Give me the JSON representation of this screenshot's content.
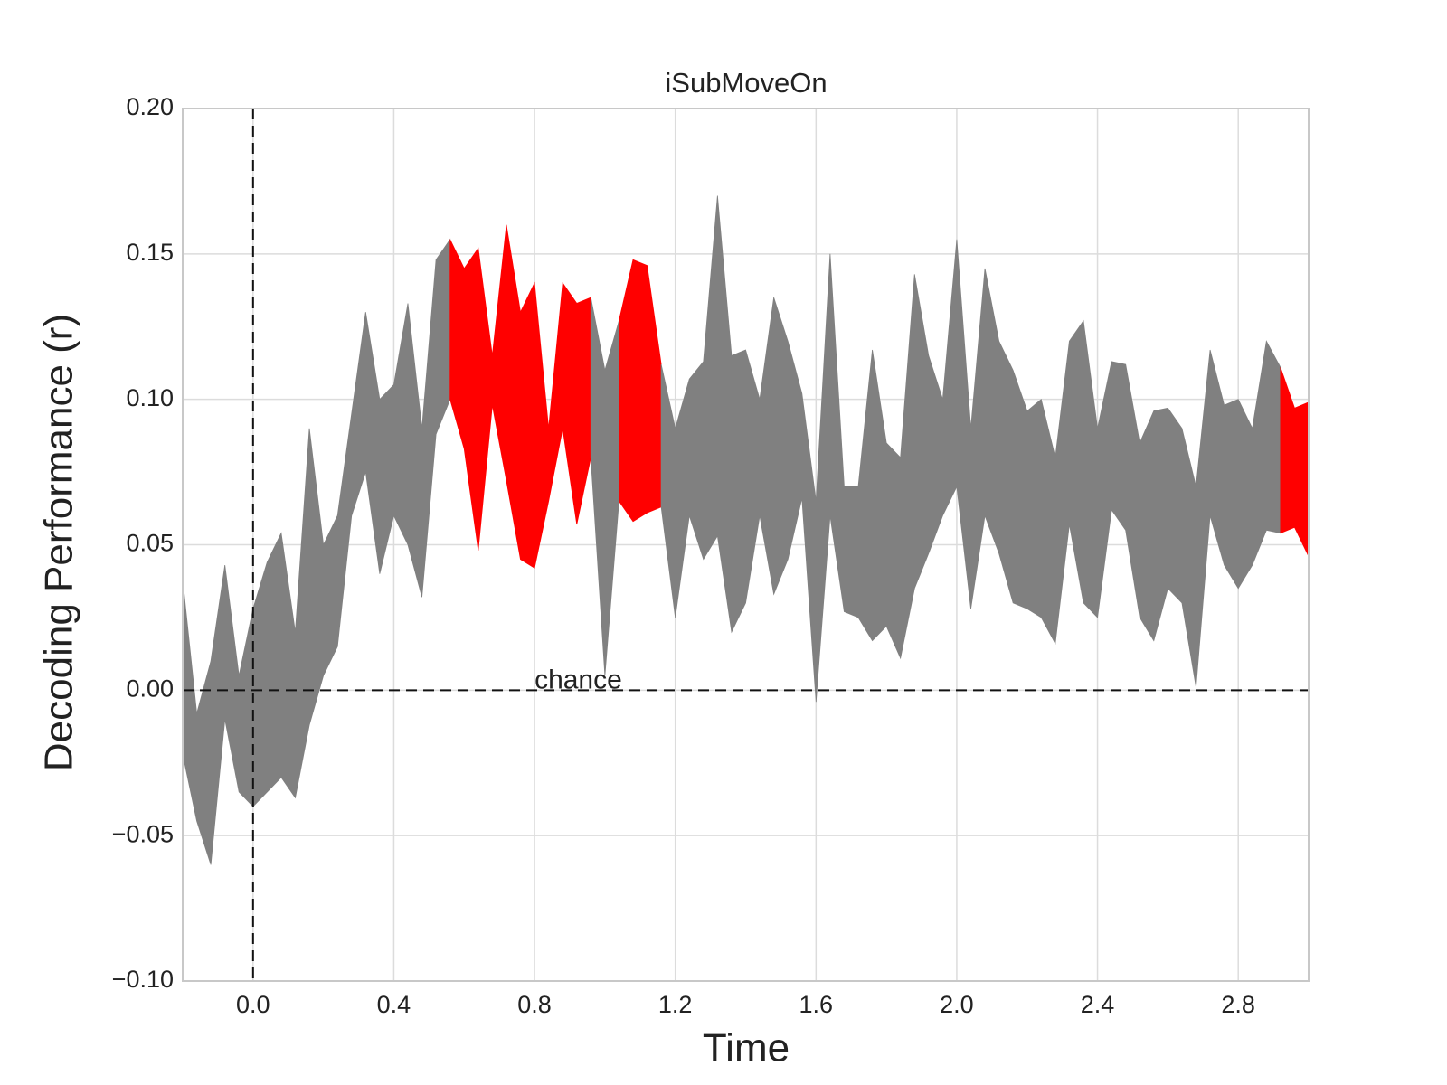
{
  "chart_data": {
    "type": "band",
    "title": "iSubMoveOn",
    "xlabel": "Time",
    "ylabel": "Decoding Performance (r)",
    "x": [
      -0.2,
      -0.16,
      -0.12,
      -0.08,
      -0.04,
      0.0,
      0.04,
      0.08,
      0.12,
      0.16,
      0.2,
      0.24,
      0.28,
      0.32,
      0.36,
      0.4,
      0.44,
      0.48,
      0.52,
      0.56,
      0.6,
      0.64,
      0.68,
      0.72,
      0.76,
      0.8,
      0.84,
      0.88,
      0.92,
      0.96,
      1.0,
      1.04,
      1.08,
      1.12,
      1.16,
      1.2,
      1.24,
      1.28,
      1.32,
      1.36,
      1.4,
      1.44,
      1.48,
      1.52,
      1.56,
      1.6,
      1.64,
      1.68,
      1.72,
      1.76,
      1.8,
      1.84,
      1.88,
      1.92,
      1.96,
      2.0,
      2.04,
      2.08,
      2.12,
      2.16,
      2.2,
      2.24,
      2.28,
      2.32,
      2.36,
      2.4,
      2.44,
      2.48,
      2.52,
      2.56,
      2.6,
      2.64,
      2.68,
      2.72,
      2.76,
      2.8,
      2.84,
      2.88,
      2.92,
      2.96,
      3.0
    ],
    "upper": [
      0.038,
      -0.008,
      0.01,
      0.043,
      0.005,
      0.028,
      0.044,
      0.054,
      0.02,
      0.09,
      0.05,
      0.06,
      0.095,
      0.13,
      0.1,
      0.105,
      0.133,
      0.09,
      0.148,
      0.155,
      0.145,
      0.152,
      0.115,
      0.16,
      0.13,
      0.14,
      0.09,
      0.14,
      0.133,
      0.135,
      0.11,
      0.127,
      0.148,
      0.146,
      0.112,
      0.09,
      0.107,
      0.113,
      0.17,
      0.115,
      0.117,
      0.1,
      0.135,
      0.12,
      0.102,
      0.065,
      0.15,
      0.07,
      0.07,
      0.117,
      0.085,
      0.08,
      0.143,
      0.115,
      0.1,
      0.155,
      0.09,
      0.145,
      0.12,
      0.11,
      0.096,
      0.1,
      0.08,
      0.12,
      0.127,
      0.09,
      0.113,
      0.112,
      0.085,
      0.096,
      0.097,
      0.09,
      0.07,
      0.117,
      0.098,
      0.1,
      0.09,
      0.12,
      0.111,
      0.097,
      0.099
    ],
    "lower": [
      -0.022,
      -0.045,
      -0.06,
      -0.01,
      -0.035,
      -0.04,
      -0.035,
      -0.03,
      -0.037,
      -0.012,
      0.005,
      0.015,
      0.06,
      0.075,
      0.04,
      0.06,
      0.05,
      0.032,
      0.088,
      0.1,
      0.083,
      0.048,
      0.098,
      0.072,
      0.045,
      0.042,
      0.065,
      0.09,
      0.057,
      0.08,
      0.005,
      0.065,
      0.058,
      0.061,
      0.063,
      0.025,
      0.06,
      0.045,
      0.053,
      0.02,
      0.03,
      0.06,
      0.033,
      0.045,
      0.066,
      -0.004,
      0.06,
      0.027,
      0.025,
      0.017,
      0.022,
      0.011,
      0.035,
      0.047,
      0.06,
      0.07,
      0.028,
      0.06,
      0.047,
      0.03,
      0.028,
      0.025,
      0.016,
      0.057,
      0.03,
      0.025,
      0.062,
      0.055,
      0.025,
      0.017,
      0.035,
      0.03,
      0.001,
      0.06,
      0.043,
      0.035,
      0.043,
      0.055,
      0.054,
      0.056,
      0.046
    ],
    "highlight": [
      false,
      false,
      false,
      false,
      false,
      false,
      false,
      false,
      false,
      false,
      false,
      false,
      false,
      false,
      false,
      false,
      false,
      false,
      false,
      true,
      true,
      true,
      true,
      true,
      true,
      true,
      true,
      true,
      true,
      true,
      false,
      true,
      true,
      true,
      true,
      false,
      false,
      false,
      false,
      false,
      false,
      false,
      false,
      false,
      false,
      false,
      false,
      false,
      false,
      false,
      false,
      false,
      false,
      false,
      false,
      false,
      false,
      false,
      false,
      false,
      false,
      false,
      false,
      false,
      false,
      false,
      false,
      false,
      false,
      false,
      false,
      false,
      false,
      false,
      false,
      false,
      false,
      false,
      true,
      true,
      true
    ],
    "color": "#808080",
    "highlight_color": "#ff0000",
    "xlim": [
      -0.2,
      3.0
    ],
    "ylim": [
      -0.1,
      0.2
    ],
    "xticks": [
      {
        "value": 0,
        "label": "0.0"
      },
      0.4,
      0.8,
      1.2,
      1.6,
      {
        "value": 2,
        "label": "2.0"
      },
      2.4,
      2.8
    ],
    "yticks": [
      {
        "value": -0.1,
        "label": "−0.10"
      },
      {
        "value": -0.05,
        "label": "−0.05"
      },
      {
        "value": 0,
        "label": "0.00"
      },
      0.05,
      {
        "value": 0.1,
        "label": "0.10"
      },
      0.15,
      {
        "value": 0.2,
        "label": "0.20"
      }
    ],
    "grid": true,
    "vlines": [
      0
    ],
    "hlines": [
      0
    ],
    "annotations": [
      {
        "text": "chance",
        "x": 0.8,
        "y": 0
      }
    ]
  }
}
